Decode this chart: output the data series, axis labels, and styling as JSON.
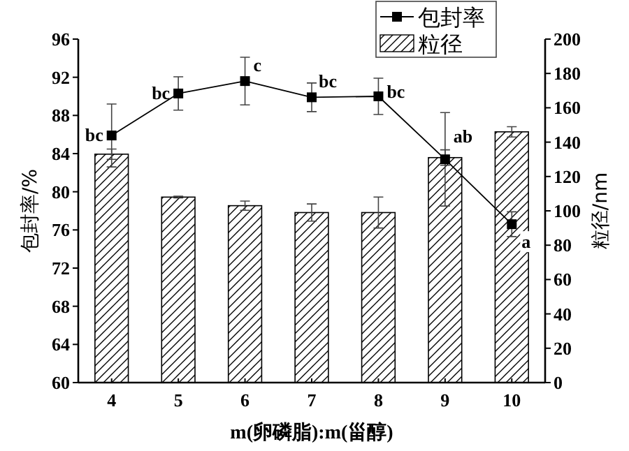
{
  "chart_data": {
    "type": "bar",
    "xlabel": "m(卵磷脂):m(甾醇)",
    "ylabel": "包封率/%",
    "y2label": "粒径/nm",
    "categories": [
      "4",
      "5",
      "6",
      "7",
      "8",
      "9",
      "10"
    ],
    "ylim": [
      60,
      96
    ],
    "yticks": [
      60,
      64,
      68,
      72,
      76,
      80,
      84,
      88,
      92,
      96
    ],
    "y2lim": [
      0,
      200
    ],
    "y2ticks": [
      0,
      20,
      40,
      60,
      80,
      100,
      120,
      140,
      160,
      180,
      200
    ],
    "legend": "top right",
    "marker": "square",
    "series": [
      {
        "name": "包封率",
        "type": "line",
        "color": "#000000",
        "values": [
          85.9,
          90.3,
          91.6,
          89.9,
          90.0,
          83.4,
          76.6
        ],
        "errors": [
          3.3,
          1.75,
          2.5,
          1.5,
          1.9,
          4.9,
          1.3
        ]
      },
      {
        "name": "粒径",
        "axis": "y2",
        "color": "#000000",
        "values": [
          133,
          108,
          103,
          99,
          99,
          131,
          146
        ],
        "errors": [
          3,
          0.5,
          2.7,
          5,
          9,
          4.5,
          3
        ]
      }
    ],
    "annotations": [
      {
        "text": "bc",
        "x": "4",
        "y": 85.9
      },
      {
        "text": "bc",
        "x": "5",
        "y": 90.3
      },
      {
        "text": "c",
        "x": "6",
        "y": 91.6
      },
      {
        "text": "bc",
        "x": "7",
        "y": 89.9
      },
      {
        "text": "bc",
        "x": "8",
        "y": 90.0
      },
      {
        "text": "ab",
        "x": "9",
        "y": 83.4
      },
      {
        "text": "a",
        "x": "10",
        "y": 76.6
      }
    ]
  }
}
